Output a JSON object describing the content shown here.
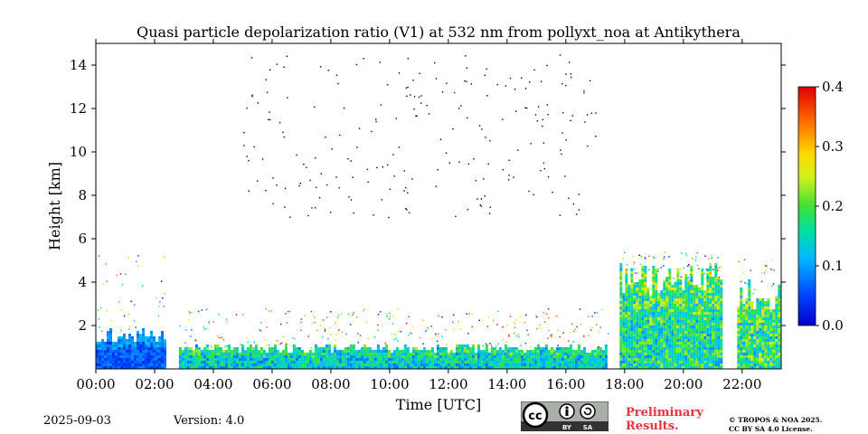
{
  "chart_data": {
    "type": "heatmap",
    "title": "Quasi particle depolarization ratio (V1) at 532 nm from pollyxt_noa at Antikythera",
    "xlabel": "Time [UTC]",
    "ylabel": "Height [km]",
    "xlim": [
      0,
      23.33
    ],
    "ylim": [
      0,
      15
    ],
    "x_tick_labels": [
      "00:00",
      "02:00",
      "04:00",
      "06:00",
      "08:00",
      "10:00",
      "12:00",
      "14:00",
      "16:00",
      "18:00",
      "20:00",
      "22:00"
    ],
    "x_tick_values": [
      0,
      2,
      4,
      6,
      8,
      10,
      12,
      14,
      16,
      18,
      20,
      22
    ],
    "y_tick_labels": [
      "2",
      "4",
      "6",
      "8",
      "10",
      "12",
      "14"
    ],
    "y_tick_values": [
      2,
      4,
      6,
      8,
      10,
      12,
      14
    ],
    "colorbar": {
      "min": 0.0,
      "max": 0.4,
      "tick_labels": [
        "0.0",
        "0.1",
        "0.2",
        "0.3",
        "0.4"
      ],
      "tick_values": [
        0.0,
        0.1,
        0.2,
        0.3,
        0.4
      ],
      "colormap": "jet"
    },
    "data_gaps_utc": [
      [
        2.33,
        2.83
      ],
      [
        17.33,
        17.83
      ],
      [
        21.33,
        21.83
      ]
    ],
    "segments": [
      {
        "start": 0.0,
        "end": 2.33,
        "layer_top_km": 1.6,
        "scatter_top_km": 4.5,
        "depol": 0.06
      },
      {
        "start": 2.83,
        "end": 17.33,
        "layer_top_km": 1.0,
        "scatter_top_km": 2.0,
        "depol": 0.14
      },
      {
        "start": 17.83,
        "end": 21.33,
        "layer_top_km": 4.2,
        "scatter_top_km": 4.6,
        "depol": 0.17
      },
      {
        "start": 21.83,
        "end": 23.33,
        "layer_top_km": 3.5,
        "scatter_top_km": 4.3,
        "depol": 0.18
      }
    ]
  },
  "footer": {
    "date": "2025-09-03",
    "version": "Version: 4.0",
    "preliminary_line1": "Preliminary",
    "preliminary_line2": "Results.",
    "copyright_line1": "© TROPOS & NOA 2025.",
    "copyright_line2": "CC BY SA 4.0 License.",
    "license_by": "BY",
    "license_sa": "SA"
  },
  "colors": {
    "preliminary": "#e8333a",
    "badge_bg": "#aab0a8",
    "badge_dark": "#333333"
  }
}
